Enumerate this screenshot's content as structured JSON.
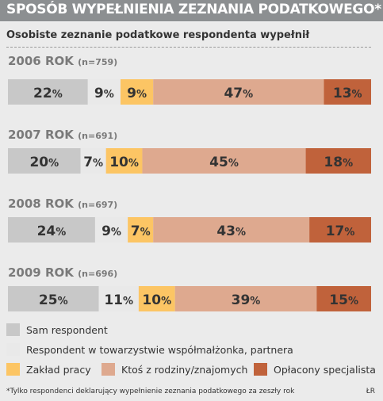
{
  "title": "SPOSÓB WYPEŁNIENIA ZEZNANIA PODATKOWEGO*",
  "subtitle": "Osobiste zeznanie podatkowe respondenta wypełnił",
  "footnote": "*Tylko respondenci deklarujący wypełnienie zeznania podatkowego za zeszły rok",
  "credit": "ŁR",
  "colors": [
    "#c8c8c8",
    "#e9e9e9",
    "#fcc564",
    "#dea98f",
    "#c0623b"
  ],
  "chart_data": {
    "type": "bar",
    "orientation": "horizontal",
    "stacked": true,
    "unit": "%",
    "categories": [
      "2006 ROK",
      "2007 ROK",
      "2008 ROK",
      "2009 ROK"
    ],
    "category_notes": [
      "(n=759)",
      "(n=691)",
      "(n=697)",
      "(n=696)"
    ],
    "series": [
      {
        "name": "Sam respondent",
        "values": [
          22,
          20,
          24,
          25
        ]
      },
      {
        "name": "Respondent w towarzystwie współmałżonka, partnera",
        "values": [
          9,
          7,
          9,
          11
        ]
      },
      {
        "name": "Zakład pracy",
        "values": [
          9,
          10,
          7,
          10
        ]
      },
      {
        "name": "Ktoś z rodziny/znajomych",
        "values": [
          47,
          45,
          43,
          39
        ]
      },
      {
        "name": "Opłacony specjalista",
        "values": [
          13,
          18,
          17,
          15
        ]
      }
    ],
    "legend_position": "bottom"
  }
}
